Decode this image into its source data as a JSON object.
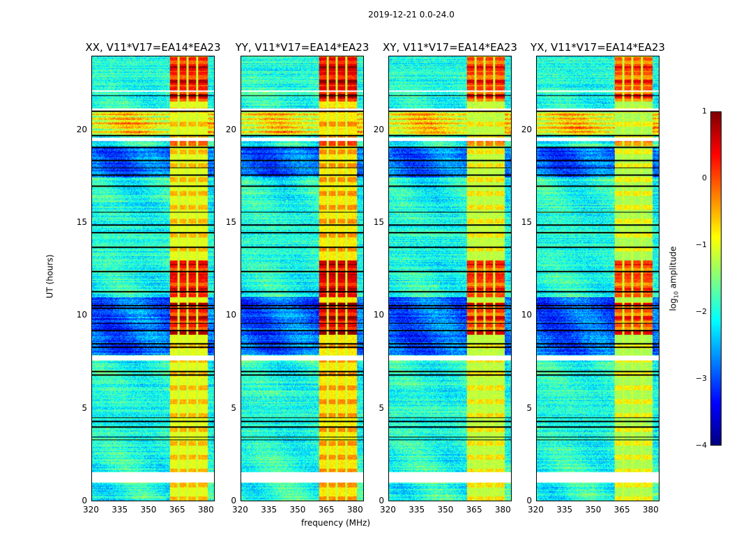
{
  "chart_data": {
    "type": "heatmap",
    "title": "2019-12-21 0.0-24.0",
    "xlabel": "frequency (MHz)",
    "ylabel": "UT (hours)",
    "xlim": [
      320,
      384.4
    ],
    "ylim": [
      0,
      24
    ],
    "xticks": [
      "320",
      "335",
      "350",
      "365",
      "380"
    ],
    "xtick_values": [
      320,
      335,
      350,
      365,
      380
    ],
    "yticks": [
      "0",
      "5",
      "10",
      "15",
      "20"
    ],
    "ytick_values": [
      0,
      5,
      10,
      15,
      20
    ],
    "colorbar": {
      "label_prefix": "log",
      "label_sub": "10",
      "label_suffix": " amplitude",
      "range": [
        -4,
        1
      ],
      "ticks": [
        "−4",
        "−3",
        "−2",
        "−1",
        "0",
        "1"
      ],
      "tick_values": [
        -4,
        -3,
        -2,
        -1,
        0,
        1
      ],
      "colormap": "jet"
    },
    "panels": [
      {
        "title": "XX, V11*V17=EA14*EA23",
        "rfi_level": 0.0
      },
      {
        "title": "YY, V11*V17=EA14*EA23",
        "rfi_level": 0.2
      },
      {
        "title": "XY, V11*V17=EA14*EA23",
        "rfi_level": -0.2
      },
      {
        "title": "YX, V11*V17=EA14*EA23",
        "rfi_level": -0.3
      }
    ],
    "background_level": -2.0,
    "rfi_band_mhz": [
      361,
      381
    ],
    "rfi_gap_channels_mhz": [
      365.5,
      370.2,
      375.2
    ],
    "strong_rfi_hours": [
      [
        21.6,
        24
      ],
      [
        11,
        13
      ],
      [
        19.2,
        19.6
      ],
      [
        9,
        10.7
      ]
    ],
    "hot_broadband_hours": [
      [
        19.7,
        21.2
      ]
    ],
    "quiet_hours": [
      [
        7.9,
        11
      ],
      [
        17.5,
        19.1
      ]
    ],
    "flagged_hours": [
      [
        1.0,
        1.55
      ],
      [
        7.6,
        7.85
      ],
      [
        19.45,
        19.65
      ],
      [
        21.1,
        21.2
      ],
      [
        22.1,
        22.2
      ]
    ],
    "flag_lines_hours": [
      3.3,
      3.45,
      4.0,
      4.3,
      4.5,
      6.8,
      7.0,
      8.3,
      8.5,
      9.2,
      9.6,
      10.4,
      10.55,
      11.3,
      12.4,
      13.7,
      14.5,
      14.9,
      15.6,
      17.0,
      17.6,
      18.0,
      18.4,
      19.1,
      19.75,
      21.05,
      21.9
    ]
  }
}
